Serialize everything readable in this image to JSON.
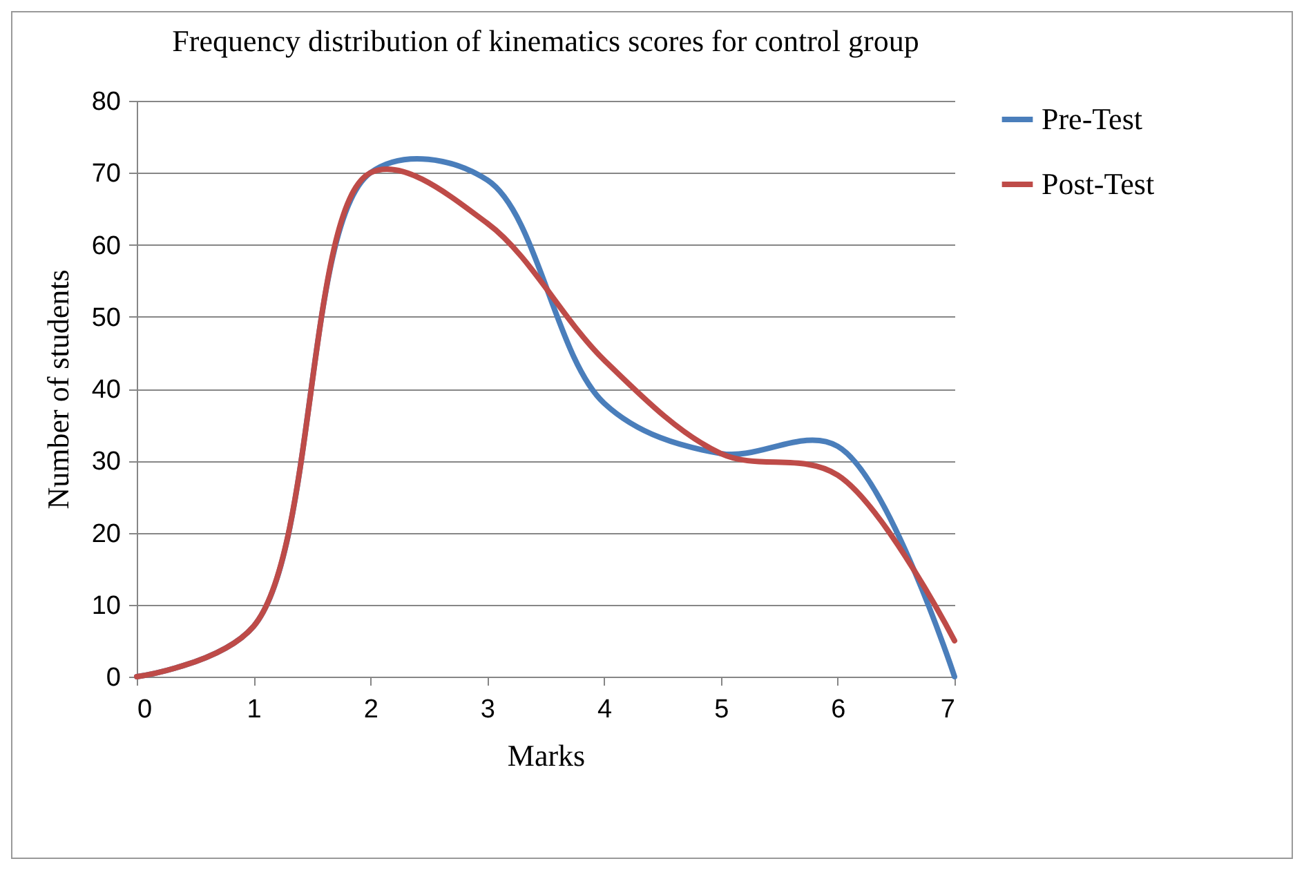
{
  "chart_data": {
    "type": "line",
    "title": "Frequency distribution of kinematics scores for control group",
    "xlabel": "Marks",
    "ylabel": "Number of students",
    "x": [
      0,
      1,
      2,
      3,
      4,
      5,
      6,
      7
    ],
    "series": [
      {
        "name": "Pre-Test",
        "color": "#4a7ebb",
        "values": [
          0,
          7,
          70,
          69,
          38,
          31,
          32,
          0
        ]
      },
      {
        "name": "Post-Test",
        "color": "#be4b48",
        "values": [
          0,
          7,
          70,
          63,
          44,
          31,
          28,
          5
        ]
      }
    ],
    "xlim": [
      0,
      7
    ],
    "xticks": [
      0,
      1,
      2,
      3,
      4,
      5,
      6,
      7
    ],
    "ylim": [
      0,
      80
    ],
    "yticks": [
      0,
      10,
      20,
      30,
      40,
      50,
      60,
      70,
      80
    ],
    "grid": "y",
    "legend": "right",
    "line_style": "solid"
  }
}
